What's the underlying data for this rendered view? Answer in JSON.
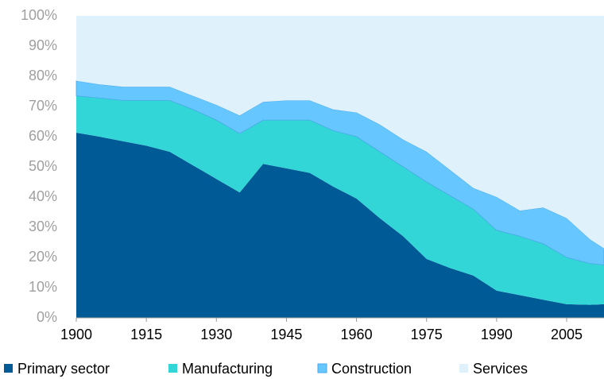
{
  "chart_data": {
    "type": "stacked_area",
    "x": [
      1900,
      1905,
      1910,
      1915,
      1920,
      1925,
      1930,
      1935,
      1940,
      1945,
      1950,
      1955,
      1960,
      1965,
      1970,
      1975,
      1980,
      1985,
      1990,
      1995,
      2000,
      2005,
      2010,
      2013
    ],
    "series": [
      {
        "name": "Primary sector",
        "color": "#005a96",
        "values": [
          61.3,
          60,
          58.5,
          57,
          55,
          50.5,
          46,
          41.5,
          51,
          49.5,
          48,
          43.5,
          39.5,
          33,
          27,
          19.5,
          16.5,
          14,
          9,
          7.5,
          6,
          4.5,
          4.3,
          4.5
        ]
      },
      {
        "name": "Manufacturing",
        "color": "#33d6d6",
        "values": [
          12.2,
          12.8,
          13.5,
          15,
          17,
          18.5,
          19.5,
          19.5,
          14.5,
          16,
          17.5,
          18.5,
          20.5,
          22,
          23,
          25.5,
          24,
          22,
          20,
          19.5,
          18.5,
          15.5,
          13.7,
          13
        ]
      },
      {
        "name": "Construction",
        "color": "#66c6ff",
        "values": [
          5,
          4.5,
          4.5,
          4.5,
          4.5,
          4.5,
          5,
          6,
          6,
          6.5,
          6.5,
          7,
          8,
          9,
          9,
          10,
          8.5,
          7,
          11,
          8.5,
          12,
          13,
          8,
          5.5
        ]
      },
      {
        "name": "Services",
        "color": "#dff1fb",
        "values": [
          21.5,
          22.7,
          23.5,
          23.5,
          23.5,
          26.5,
          29.5,
          33,
          28.5,
          28,
          28,
          31,
          32,
          36,
          41,
          45,
          51,
          57,
          60,
          64.5,
          63.5,
          67,
          74,
          77
        ]
      }
    ],
    "xlim": [
      1900,
      2013
    ],
    "xticks": [
      1900,
      1915,
      1930,
      1945,
      1960,
      1975,
      1990,
      2005
    ],
    "ylim": [
      0,
      100
    ],
    "yticks": [
      {
        "value": 0,
        "label": "0%"
      },
      {
        "value": 10,
        "label": "10%"
      },
      {
        "value": 20,
        "label": "20%"
      },
      {
        "value": 30,
        "label": "30%"
      },
      {
        "value": 40,
        "label": "40%"
      },
      {
        "value": 50,
        "label": "50%"
      },
      {
        "value": 60,
        "label": "60%"
      },
      {
        "value": 70,
        "label": "70%"
      },
      {
        "value": 80,
        "label": "80%"
      },
      {
        "value": 90,
        "label": "90%"
      },
      {
        "value": 100,
        "label": "100%"
      }
    ],
    "legend": "bottom"
  }
}
